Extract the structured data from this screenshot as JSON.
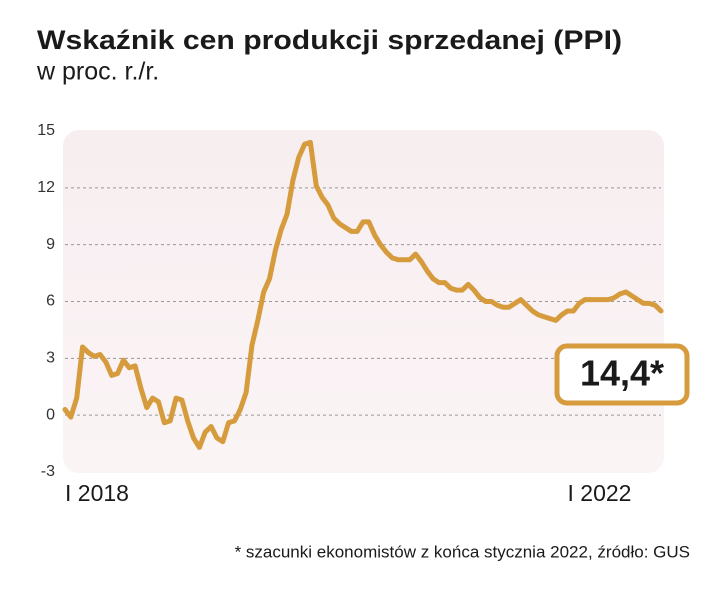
{
  "chart_data": {
    "type": "line",
    "title": "Wskaźnik cen produkcji sprzedanej (PPI)",
    "subtitle": "w proc. r./r.",
    "annotation": "14,4*",
    "footnote": "* szacunki ekonomistów z końca stycznia 2022, źródło: GUS",
    "categories": [
      "I 2018",
      null,
      null,
      null,
      null,
      null,
      null,
      null,
      null,
      null,
      null,
      null,
      null,
      null,
      null,
      null,
      null,
      null,
      null,
      null,
      null,
      null,
      null,
      null,
      null,
      null,
      null,
      null,
      null,
      null,
      null,
      null,
      null,
      null,
      null,
      null,
      null,
      null,
      null,
      null,
      null,
      null,
      null,
      null,
      null,
      null,
      null,
      null,
      null,
      null,
      null,
      null,
      null,
      null,
      null,
      null,
      null,
      null,
      null,
      null,
      null,
      null,
      null,
      null,
      null,
      null,
      null,
      null,
      null,
      null,
      null,
      null,
      null,
      null,
      null,
      null,
      null,
      null,
      null,
      null,
      null,
      null,
      null,
      null,
      null,
      null,
      "I 2022",
      null,
      null,
      null,
      null,
      null,
      null,
      null,
      null,
      null,
      null,
      null,
      null,
      null,
      null,
      null,
      null
    ],
    "series": [
      {
        "name": "PPI",
        "color": "#d69b3c",
        "values": [
          0.3,
          -0.1,
          0.9,
          3.6,
          3.3,
          3.1,
          3.2,
          2.8,
          2.1,
          2.2,
          2.9,
          2.5,
          2.6,
          1.4,
          0.4,
          0.9,
          0.7,
          -0.4,
          -0.3,
          0.9,
          0.8,
          -0.3,
          -1.2,
          -1.7,
          -0.9,
          -0.6,
          -1.2,
          -1.4,
          -0.4,
          -0.3,
          0.3,
          1.2,
          3.7,
          5.0,
          6.5,
          7.2,
          8.7,
          9.8,
          10.6,
          12.4,
          13.6,
          14.3,
          14.4,
          12.1,
          11.5,
          11.1,
          10.4,
          10.1,
          9.9,
          9.7,
          9.7,
          10.2,
          10.2,
          9.5,
          9.0,
          8.6,
          8.3,
          8.2,
          8.2,
          8.2,
          8.5,
          8.1,
          7.6,
          7.2,
          7.0,
          7.0,
          6.7,
          6.6,
          6.6,
          6.9,
          6.6,
          6.2,
          6.0,
          6.0,
          5.8,
          5.7,
          5.7,
          5.9,
          6.1,
          5.8,
          5.5,
          5.3,
          5.2,
          5.1,
          5.0,
          5.3,
          5.5,
          5.5,
          5.9,
          6.1,
          6.1,
          6.1,
          6.1,
          6.1,
          6.2,
          6.4,
          6.5,
          6.3,
          6.1,
          5.9,
          5.9,
          5.8,
          5.5
        ]
      }
    ],
    "ylim": [
      -3,
      15
    ],
    "yticks": [
      -3,
      0,
      3,
      6,
      9,
      12,
      15
    ],
    "grid": true
  }
}
